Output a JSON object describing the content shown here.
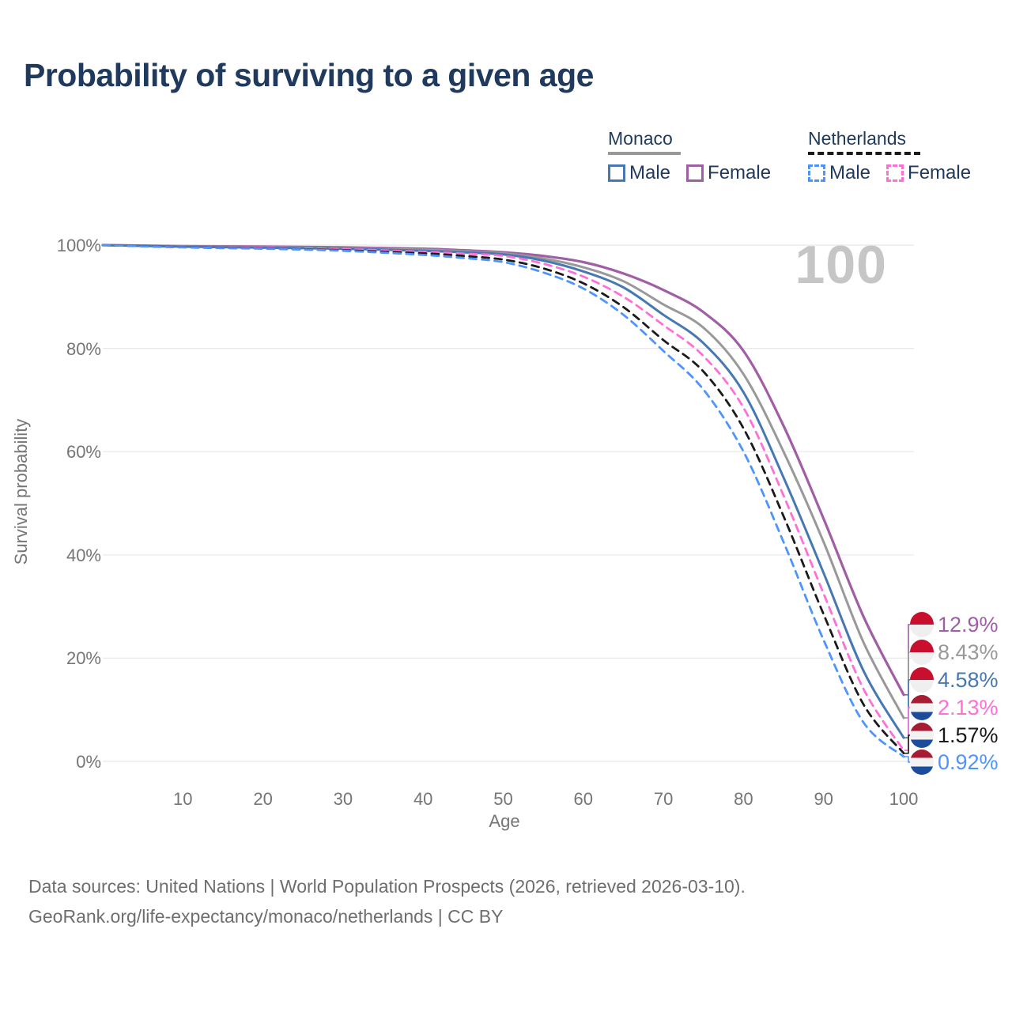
{
  "title": "Probability of surviving to a given age",
  "legend": {
    "monaco": {
      "label": "Monaco",
      "male": "Male",
      "female": "Female",
      "rule_style": "solid",
      "rule_color": "#999999"
    },
    "netherlands": {
      "label": "Netherlands",
      "male": "Male",
      "female": "Female",
      "rule_style": "dashed",
      "rule_color": "#1A1A1A"
    }
  },
  "watermark": "100",
  "footer": {
    "line1": "Data sources: United Nations | World Population Prospects (2026, retrieved 2026-03-10).",
    "line2": "GeoRank.org/life-expectancy/monaco/netherlands | CC BY"
  },
  "colors": {
    "title": "#1F3A5C",
    "axis_text": "#757575",
    "gridline": "#E8E8EB",
    "watermark": "#C6C6C6",
    "monaco_male": "#4678B2",
    "monaco_female": "#A05EA5",
    "monaco_total": "#999999",
    "nl_male": "#4D94FF",
    "nl_female": "#FF6FD6",
    "nl_total": "#1A1A1A"
  },
  "flags": {
    "monaco": [
      "#C8102E",
      "#C8102E",
      "#EFEFEF",
      "#EFEFEF"
    ],
    "netherlands": [
      "#A81C33",
      "#F2F2F2",
      "#1E4C9C"
    ]
  },
  "chart_data": {
    "type": "line",
    "title": "Probability of surviving to a given age",
    "xlabel": "Age",
    "ylabel": "Survival probability",
    "xlim": [
      0,
      100
    ],
    "ylim": [
      0,
      100
    ],
    "grid": "horizontal",
    "legend_position": "top-right",
    "y_ticks": [
      {
        "v": 100,
        "label": "100%"
      },
      {
        "v": 80,
        "label": "80%"
      },
      {
        "v": 60,
        "label": "60%"
      },
      {
        "v": 40,
        "label": "40%"
      },
      {
        "v": 20,
        "label": "20%"
      },
      {
        "v": 0,
        "label": "0%"
      }
    ],
    "x_ticks": [
      {
        "v": 10,
        "label": "10"
      },
      {
        "v": 20,
        "label": "20"
      },
      {
        "v": 30,
        "label": "30"
      },
      {
        "v": 40,
        "label": "40"
      },
      {
        "v": 50,
        "label": "50"
      },
      {
        "v": 60,
        "label": "60"
      },
      {
        "v": 70,
        "label": "70"
      },
      {
        "v": 80,
        "label": "80"
      },
      {
        "v": 90,
        "label": "90"
      },
      {
        "v": 100,
        "label": "100"
      }
    ],
    "series": [
      {
        "name": "Monaco Female",
        "color": "#A05EA5",
        "dash": "solid",
        "width": 3.2,
        "points": [
          [
            0,
            100
          ],
          [
            10,
            99.8
          ],
          [
            20,
            99.7
          ],
          [
            30,
            99.55
          ],
          [
            40,
            99.3
          ],
          [
            45,
            99.0
          ],
          [
            50,
            98.6
          ],
          [
            55,
            97.9
          ],
          [
            60,
            96.7
          ],
          [
            65,
            94.5
          ],
          [
            70,
            91.3
          ],
          [
            75,
            87.0
          ],
          [
            80,
            79.5
          ],
          [
            85,
            65.0
          ],
          [
            90,
            47.0
          ],
          [
            95,
            28.0
          ],
          [
            100,
            12.9
          ]
        ]
      },
      {
        "name": "Monaco Both sexes",
        "color": "#999999",
        "dash": "solid",
        "width": 3,
        "points": [
          [
            0,
            100
          ],
          [
            10,
            99.75
          ],
          [
            20,
            99.6
          ],
          [
            30,
            99.4
          ],
          [
            40,
            99.1
          ],
          [
            45,
            98.8
          ],
          [
            50,
            98.4
          ],
          [
            55,
            97.4
          ],
          [
            60,
            95.7
          ],
          [
            65,
            93.0
          ],
          [
            70,
            88.5
          ],
          [
            75,
            84.0
          ],
          [
            80,
            75.0
          ],
          [
            85,
            60.0
          ],
          [
            90,
            42.5
          ],
          [
            95,
            23.0
          ],
          [
            100,
            8.43
          ]
        ]
      },
      {
        "name": "Monaco Male",
        "color": "#4678B2",
        "dash": "solid",
        "width": 3,
        "points": [
          [
            0,
            100
          ],
          [
            10,
            99.7
          ],
          [
            20,
            99.5
          ],
          [
            30,
            99.3
          ],
          [
            40,
            98.9
          ],
          [
            45,
            98.6
          ],
          [
            50,
            98.2
          ],
          [
            55,
            97.0
          ],
          [
            60,
            94.9
          ],
          [
            65,
            91.8
          ],
          [
            70,
            86.5
          ],
          [
            75,
            81.0
          ],
          [
            80,
            71.5
          ],
          [
            85,
            55.0
          ],
          [
            90,
            36.5
          ],
          [
            95,
            17.5
          ],
          [
            100,
            4.58
          ]
        ]
      },
      {
        "name": "Netherlands Female",
        "color": "#FF6FD6",
        "dash": "dashed",
        "width": 2.8,
        "points": [
          [
            0,
            100
          ],
          [
            10,
            99.65
          ],
          [
            20,
            99.45
          ],
          [
            30,
            99.2
          ],
          [
            40,
            98.7
          ],
          [
            45,
            98.35
          ],
          [
            50,
            97.9
          ],
          [
            55,
            96.4
          ],
          [
            60,
            93.9
          ],
          [
            65,
            90.0
          ],
          [
            70,
            84.5
          ],
          [
            75,
            78.5
          ],
          [
            80,
            68.5
          ],
          [
            85,
            51.5
          ],
          [
            90,
            32.5
          ],
          [
            95,
            14.0
          ],
          [
            100,
            2.13
          ]
        ]
      },
      {
        "name": "Netherlands Both sexes",
        "color": "#1A1A1A",
        "dash": "dashed",
        "width": 2.8,
        "points": [
          [
            0,
            100
          ],
          [
            10,
            99.6
          ],
          [
            20,
            99.35
          ],
          [
            30,
            99.0
          ],
          [
            40,
            98.4
          ],
          [
            45,
            97.9
          ],
          [
            50,
            97.2
          ],
          [
            55,
            95.5
          ],
          [
            60,
            92.6
          ],
          [
            65,
            88.0
          ],
          [
            70,
            81.6
          ],
          [
            75,
            75.5
          ],
          [
            80,
            64.5
          ],
          [
            85,
            47.5
          ],
          [
            90,
            28.5
          ],
          [
            95,
            11.0
          ],
          [
            100,
            1.57
          ]
        ]
      },
      {
        "name": "Netherlands Male",
        "color": "#4D94FF",
        "dash": "dashed",
        "width": 2.8,
        "points": [
          [
            0,
            100
          ],
          [
            10,
            99.55
          ],
          [
            20,
            99.3
          ],
          [
            30,
            98.9
          ],
          [
            40,
            98.1
          ],
          [
            45,
            97.5
          ],
          [
            50,
            96.7
          ],
          [
            55,
            94.7
          ],
          [
            60,
            91.6
          ],
          [
            65,
            86.5
          ],
          [
            70,
            79.5
          ],
          [
            75,
            72.0
          ],
          [
            80,
            60.0
          ],
          [
            85,
            42.5
          ],
          [
            90,
            23.5
          ],
          [
            95,
            7.5
          ],
          [
            100,
            0.92
          ]
        ]
      }
    ],
    "end_labels": [
      {
        "text": "12.9%",
        "value": 12.9,
        "color": "#A05EA5",
        "flag": "monaco"
      },
      {
        "text": "8.43%",
        "value": 8.43,
        "color": "#999999",
        "flag": "monaco"
      },
      {
        "text": "4.58%",
        "value": 4.58,
        "color": "#4678B2",
        "flag": "monaco"
      },
      {
        "text": "2.13%",
        "value": 2.13,
        "color": "#FF6FD6",
        "flag": "netherlands"
      },
      {
        "text": "1.57%",
        "value": 1.57,
        "color": "#1A1A1A",
        "flag": "netherlands"
      },
      {
        "text": "0.92%",
        "value": 0.92,
        "color": "#4D94FF",
        "flag": "netherlands"
      }
    ]
  }
}
